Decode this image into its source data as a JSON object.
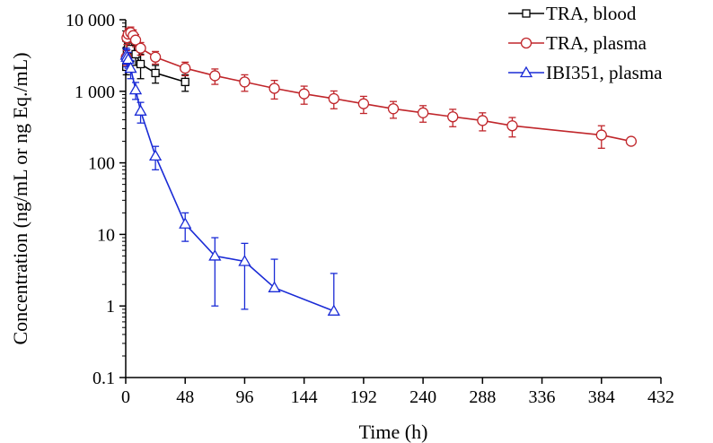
{
  "chart_data": {
    "type": "line",
    "xlabel": "Time (h)",
    "ylabel": "Concentration (ng/mL or ng Eq./mL)",
    "xlim": [
      0,
      432
    ],
    "xticks": [
      0,
      48,
      96,
      144,
      192,
      240,
      288,
      336,
      384,
      432
    ],
    "xtick_labels": [
      "0",
      "48",
      "96",
      "144",
      "192",
      "240",
      "288",
      "336",
      "384",
      "432"
    ],
    "yscale": "log",
    "ylim": [
      0.1,
      10000
    ],
    "yticks": [
      0.1,
      1,
      10,
      100,
      1000,
      10000
    ],
    "ytick_labels": [
      "0.1",
      "1",
      "10",
      "100",
      "1 000",
      "10 000"
    ],
    "grid": false,
    "legend_position": "top-right",
    "series": [
      {
        "name": "TRA, blood",
        "color": "#000000",
        "marker": "square",
        "x": [
          0.5,
          1,
          2,
          4,
          8,
          12,
          24,
          48
        ],
        "y": [
          2200,
          3700,
          4200,
          3900,
          3300,
          2400,
          1800,
          1350
        ],
        "err": [
          500,
          1200,
          1400,
          1300,
          1000,
          900,
          500,
          350
        ]
      },
      {
        "name": "TRA, plasma",
        "color": "#c0262b",
        "marker": "circle",
        "x": [
          0.5,
          1,
          2,
          4,
          6,
          8,
          12,
          24,
          48,
          72,
          96,
          120,
          144,
          168,
          192,
          216,
          240,
          264,
          288,
          312,
          384,
          408
        ],
        "y": [
          3000,
          5600,
          6300,
          6600,
          6000,
          5200,
          4000,
          3000,
          2100,
          1650,
          1350,
          1100,
          920,
          790,
          670,
          570,
          500,
          440,
          390,
          330,
          245,
          200
        ],
        "err": [
          700,
          1100,
          1300,
          1300,
          1200,
          1000,
          800,
          600,
          450,
          400,
          350,
          320,
          260,
          220,
          180,
          150,
          130,
          120,
          110,
          100,
          85,
          0
        ]
      },
      {
        "name": "IBI351, plasma",
        "color": "#1a2bd6",
        "marker": "triangle",
        "x": [
          0.5,
          1,
          2,
          4,
          8,
          12,
          24,
          48,
          72,
          96,
          120,
          168
        ],
        "y": [
          3200,
          3000,
          2800,
          2100,
          1050,
          530,
          125,
          14,
          5,
          4.2,
          1.8,
          0.85
        ],
        "err": [
          800,
          800,
          700,
          600,
          280,
          170,
          45,
          6,
          4,
          3.3,
          2.7,
          2.0
        ]
      }
    ]
  }
}
